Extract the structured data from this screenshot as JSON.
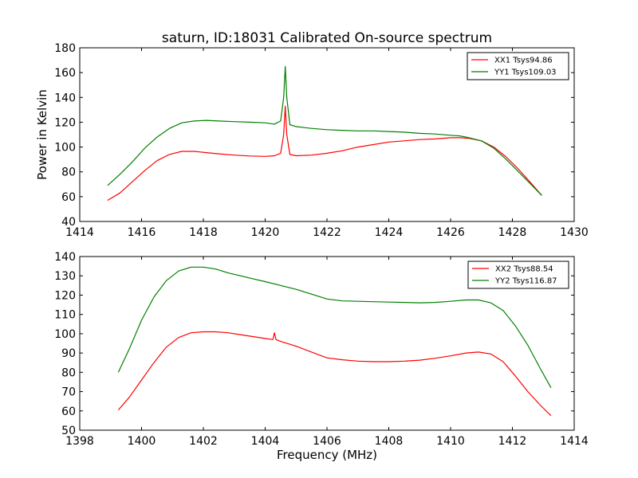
{
  "title": "saturn, ID:18031 Calibrated On-source spectrum",
  "colors": {
    "red": "#ff0000",
    "green": "#008000",
    "axis": "#000000"
  },
  "chart_data": [
    {
      "type": "line",
      "ylabel": "Power in Kelvin",
      "xlabel": "",
      "xlim": [
        1414,
        1430
      ],
      "ylim": [
        40,
        180
      ],
      "xticks": [
        1414,
        1416,
        1418,
        1420,
        1422,
        1424,
        1426,
        1428,
        1430
      ],
      "yticks": [
        40,
        60,
        80,
        100,
        120,
        140,
        160,
        180
      ],
      "legend": "top-right",
      "series": [
        {
          "name": "XX1 Tsys94.86",
          "color": "#ff0000",
          "x": [
            1414.9,
            1415.3,
            1415.7,
            1416.1,
            1416.5,
            1416.9,
            1417.3,
            1417.7,
            1418.1,
            1418.5,
            1419.0,
            1419.5,
            1420.0,
            1420.3,
            1420.5,
            1420.6,
            1420.65,
            1420.7,
            1420.8,
            1421.0,
            1421.5,
            1422.0,
            1422.5,
            1423.0,
            1423.5,
            1424.0,
            1424.5,
            1425.0,
            1425.5,
            1426.0,
            1426.3,
            1426.6,
            1427.0,
            1427.4,
            1427.8,
            1428.2,
            1428.6,
            1428.95
          ],
          "y": [
            57,
            63,
            72,
            81,
            89,
            94,
            96.5,
            96.5,
            95.5,
            94.5,
            93.5,
            92.8,
            92.5,
            93,
            95,
            110,
            133,
            110,
            94,
            93,
            93.5,
            95,
            97,
            100,
            102,
            104,
            105,
            106,
            106.5,
            107.5,
            107.5,
            107,
            105,
            100,
            92,
            82,
            71,
            61
          ]
        },
        {
          "name": "YY1 Tsys109.03",
          "color": "#008000",
          "x": [
            1414.9,
            1415.3,
            1415.7,
            1416.1,
            1416.5,
            1416.9,
            1417.3,
            1417.7,
            1418.1,
            1418.5,
            1419.0,
            1419.5,
            1420.0,
            1420.3,
            1420.5,
            1420.6,
            1420.65,
            1420.7,
            1420.8,
            1421.0,
            1421.5,
            1422.0,
            1422.5,
            1423.0,
            1423.5,
            1424.0,
            1424.5,
            1425.0,
            1425.5,
            1426.0,
            1426.3,
            1426.6,
            1427.0,
            1427.4,
            1427.8,
            1428.2,
            1428.6,
            1428.95
          ],
          "y": [
            69,
            78,
            88,
            99,
            108,
            115,
            119.5,
            121,
            121.5,
            121,
            120.5,
            120,
            119.5,
            118.5,
            121,
            140,
            165,
            140,
            118,
            116.5,
            115,
            114,
            113.5,
            113,
            113,
            112.5,
            112,
            111,
            110.5,
            109.5,
            109,
            107.5,
            105,
            99,
            90,
            80,
            70,
            61
          ]
        }
      ]
    },
    {
      "type": "line",
      "xlabel": "Frequency (MHz)",
      "ylabel": "",
      "xlim": [
        1398,
        1414
      ],
      "ylim": [
        50,
        140
      ],
      "xticks": [
        1398,
        1400,
        1402,
        1404,
        1406,
        1408,
        1410,
        1412,
        1414
      ],
      "yticks": [
        50,
        60,
        70,
        80,
        90,
        100,
        110,
        120,
        130,
        140
      ],
      "legend": "top-right",
      "series": [
        {
          "name": "XX2 Tsys88.54",
          "color": "#ff0000",
          "x": [
            1399.25,
            1399.6,
            1400.0,
            1400.4,
            1400.8,
            1401.2,
            1401.6,
            1402.0,
            1402.4,
            1402.8,
            1403.2,
            1403.6,
            1404.0,
            1404.25,
            1404.3,
            1404.35,
            1404.5,
            1405.0,
            1405.5,
            1406.0,
            1406.5,
            1407.0,
            1407.5,
            1408.0,
            1408.5,
            1409.0,
            1409.5,
            1410.0,
            1410.5,
            1410.9,
            1411.3,
            1411.7,
            1412.1,
            1412.5,
            1412.9,
            1413.25
          ],
          "y": [
            60.5,
            67,
            76,
            85,
            93,
            98,
            100.5,
            101,
            101,
            100.5,
            99.5,
            98.5,
            97.5,
            97,
            100.5,
            97,
            96,
            93.5,
            90.5,
            87.5,
            86.5,
            85.8,
            85.5,
            85.5,
            85.8,
            86.3,
            87.3,
            88.5,
            90,
            90.5,
            89.5,
            85.5,
            78,
            70,
            63,
            57.5
          ]
        },
        {
          "name": "YY2 Tsys116.87",
          "color": "#008000",
          "x": [
            1399.25,
            1399.6,
            1400.0,
            1400.4,
            1400.8,
            1401.2,
            1401.6,
            1402.0,
            1402.4,
            1402.8,
            1403.2,
            1403.6,
            1404.0,
            1404.5,
            1405.0,
            1405.5,
            1406.0,
            1406.5,
            1407.0,
            1407.5,
            1408.0,
            1408.5,
            1409.0,
            1409.5,
            1410.0,
            1410.5,
            1410.9,
            1411.3,
            1411.7,
            1412.1,
            1412.5,
            1412.9,
            1413.25
          ],
          "y": [
            80,
            92,
            107,
            119,
            127.5,
            132.5,
            134.5,
            134.5,
            133.5,
            131.5,
            130,
            128.5,
            127,
            125,
            123,
            120.5,
            118,
            117,
            116.8,
            116.6,
            116.4,
            116.2,
            116,
            116.2,
            116.8,
            117.5,
            117.5,
            116,
            112,
            104,
            94,
            82,
            72
          ]
        }
      ]
    }
  ]
}
